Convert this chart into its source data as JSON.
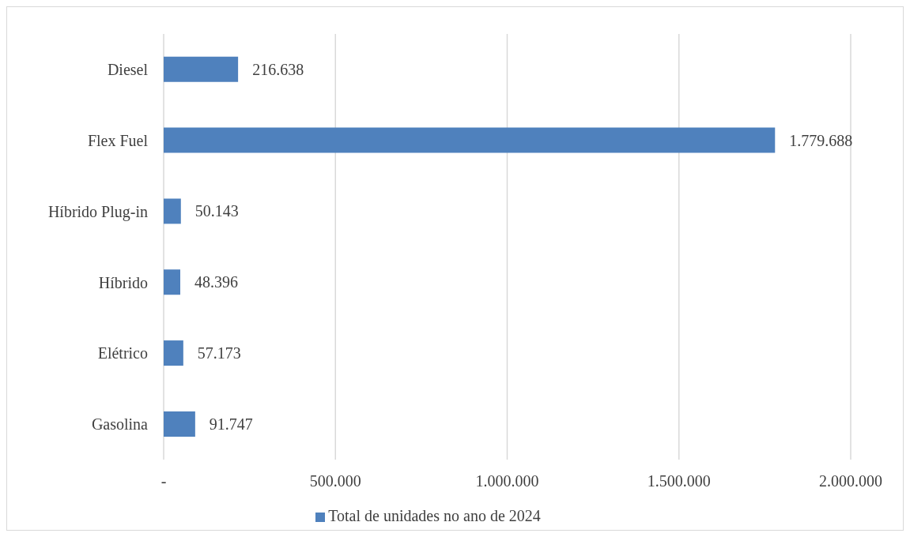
{
  "chart_data": {
    "type": "bar",
    "orientation": "horizontal",
    "categories": [
      "Diesel",
      "Flex Fuel",
      "Híbrido Plug-in",
      "Híbrido",
      "Elétrico",
      "Gasolina"
    ],
    "series": [
      {
        "name": "Total de unidades no ano de 2024",
        "color": "#4f81bd",
        "values": [
          216638,
          1779688,
          50143,
          48396,
          57173,
          91747
        ],
        "value_labels": [
          "216.638",
          "1.779.688",
          "50.143",
          "48.396",
          "57.173",
          "91.747"
        ]
      }
    ],
    "xlim": [
      0,
      2000000
    ],
    "xticks": [
      {
        "value": 0,
        "label": "-"
      },
      {
        "value": 500000,
        "label": "500.000"
      },
      {
        "value": 1000000,
        "label": "1.000.000"
      },
      {
        "value": 1500000,
        "label": "1.500.000"
      },
      {
        "value": 2000000,
        "label": "2.000.000"
      }
    ],
    "grid": "x",
    "legend": "bottom"
  }
}
